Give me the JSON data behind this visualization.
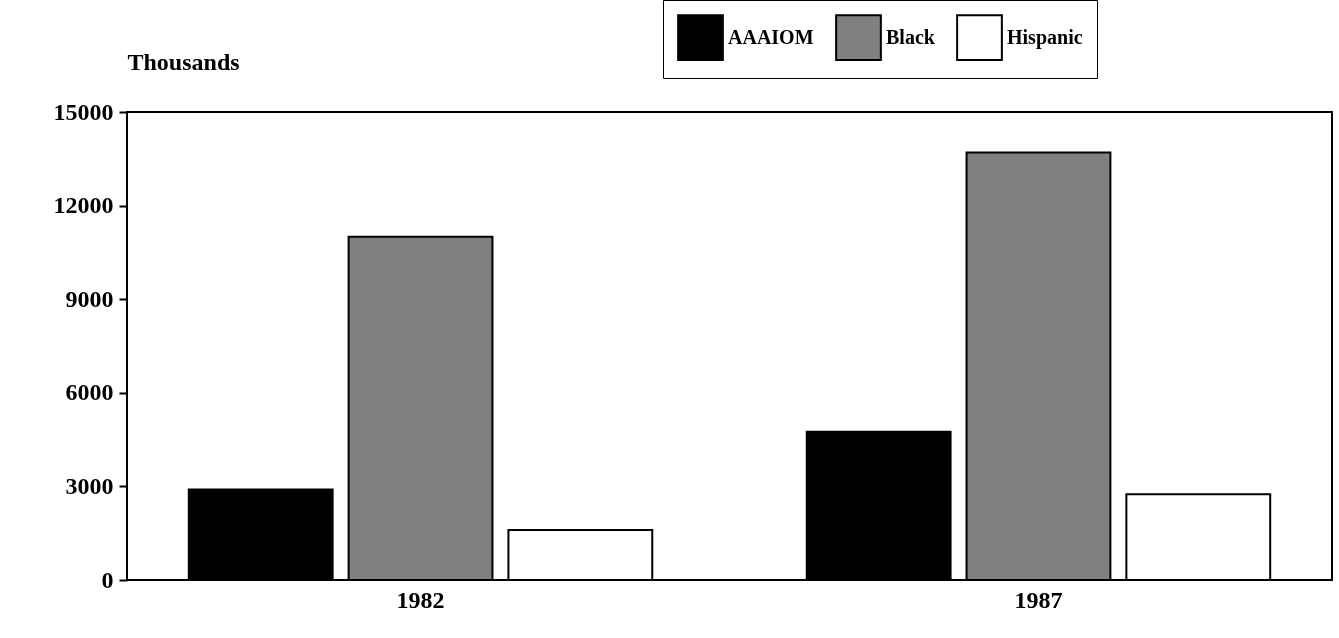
{
  "chart_data": {
    "type": "bar",
    "ylabel": "Thousands",
    "categories": [
      "1982",
      "1987"
    ],
    "series": [
      {
        "name": "AAAIOM",
        "color": "#000000",
        "values": [
          2900,
          4750
        ]
      },
      {
        "name": "Black",
        "color": "#808080",
        "values": [
          11000,
          13700
        ]
      },
      {
        "name": "Hispanic",
        "color": "#ffffff",
        "values": [
          1600,
          2750
        ]
      }
    ],
    "ylim": [
      0,
      15000
    ],
    "yticks": [
      0,
      3000,
      6000,
      9000,
      12000,
      15000
    ],
    "grid": false,
    "legend": "top right"
  }
}
